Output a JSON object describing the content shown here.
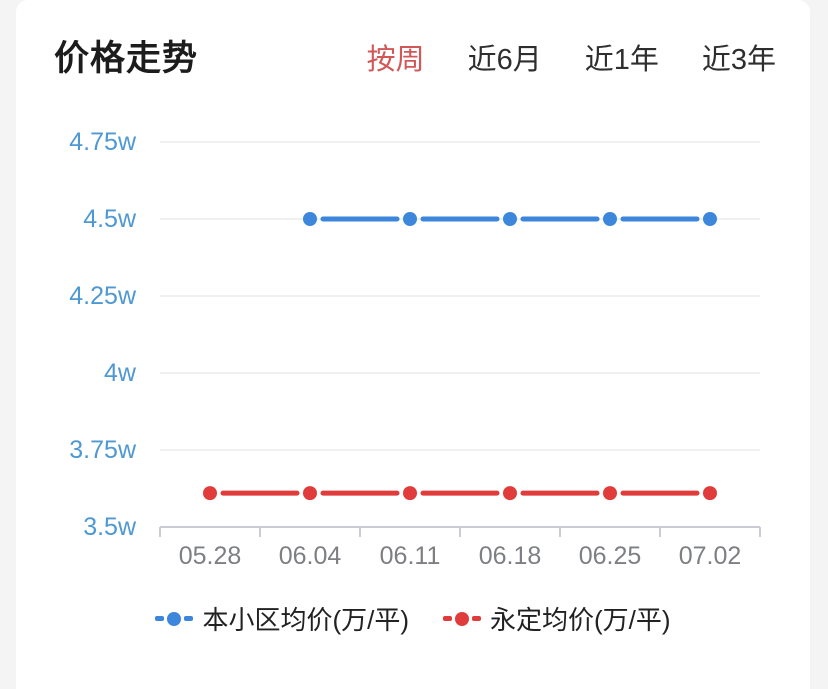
{
  "page": {
    "background_color": "#f4f4f4",
    "card_color": "#ffffff"
  },
  "header": {
    "title": "价格走势",
    "tabs": [
      {
        "label": "按周",
        "active": true
      },
      {
        "label": "近6月",
        "active": false
      },
      {
        "label": "近1年",
        "active": false
      },
      {
        "label": "近3年",
        "active": false
      }
    ],
    "active_tab_color": "#d25858"
  },
  "chart_data": {
    "type": "line",
    "title": "价格走势",
    "categories": [
      "05.28",
      "06.04",
      "06.11",
      "06.18",
      "06.25",
      "07.02"
    ],
    "series": [
      {
        "name": "本小区均价(万/平)",
        "color": "#3c86dc",
        "values": [
          null,
          4.5,
          4.5,
          4.5,
          4.5,
          4.5
        ]
      },
      {
        "name": "永定均价(万/平)",
        "color": "#e13c3c",
        "values": [
          3.61,
          3.61,
          3.61,
          3.61,
          3.61,
          3.61
        ]
      }
    ],
    "yticks": [
      {
        "label": "4.75w",
        "value": 4.75
      },
      {
        "label": "4.5w",
        "value": 4.5
      },
      {
        "label": "4.25w",
        "value": 4.25
      },
      {
        "label": "4w",
        "value": 4.0
      },
      {
        "label": "3.75w",
        "value": 3.75
      },
      {
        "label": "3.5w",
        "value": 3.5
      }
    ],
    "ylim": [
      3.5,
      4.75
    ],
    "unit": "w",
    "grid": true,
    "legend_position": "bottom",
    "colors": {
      "y_label": "#4e98d3",
      "x_label": "#7d7f83",
      "gridline": "#ebebeb",
      "axis": "#c9cdd3"
    }
  }
}
